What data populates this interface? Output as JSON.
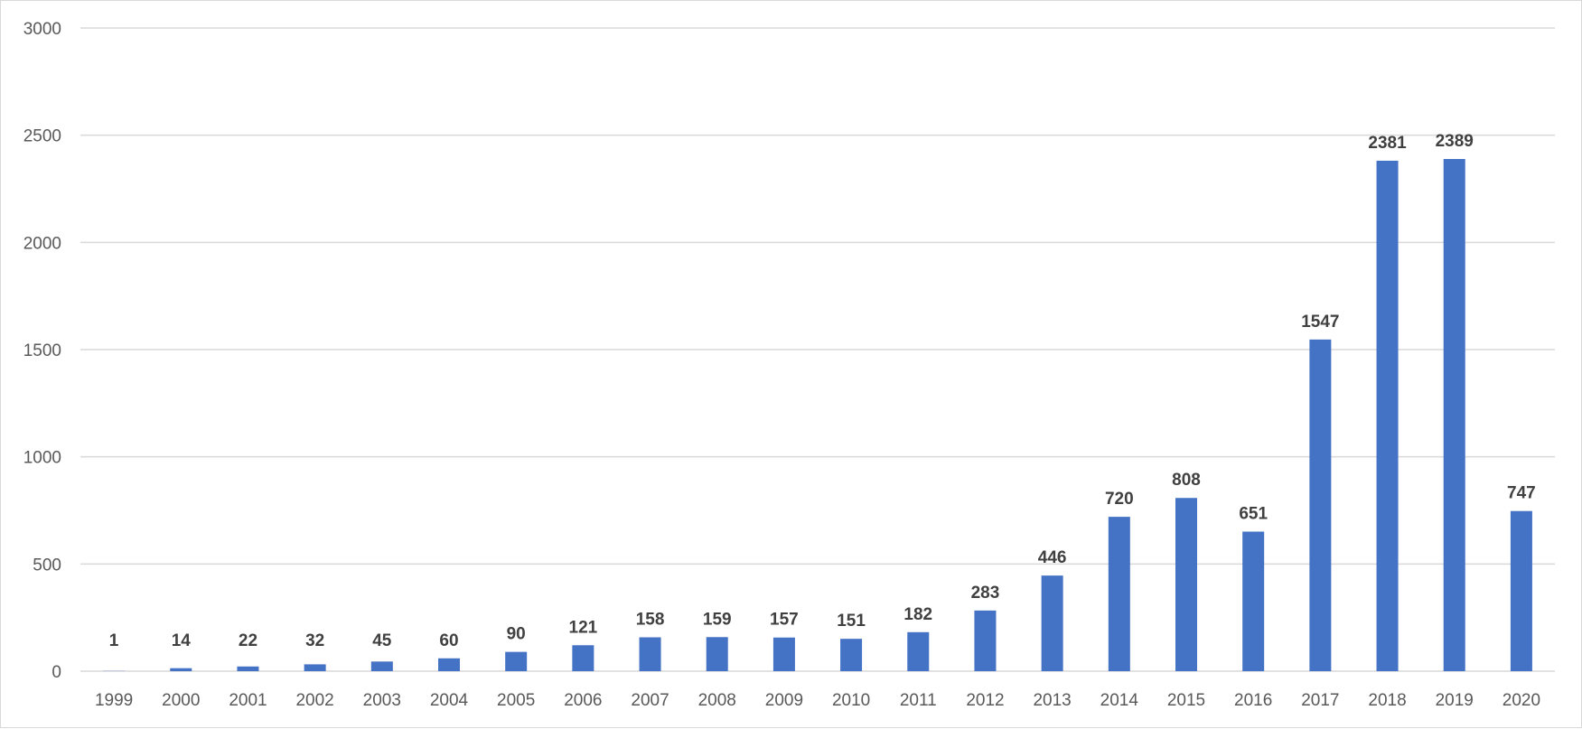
{
  "chart_data": {
    "type": "bar",
    "title": "",
    "xlabel": "",
    "ylabel": "",
    "categories": [
      "1999",
      "2000",
      "2001",
      "2002",
      "2003",
      "2004",
      "2005",
      "2006",
      "2007",
      "2008",
      "2009",
      "2010",
      "2011",
      "2012",
      "2013",
      "2014",
      "2015",
      "2016",
      "2017",
      "2018",
      "2019",
      "2020"
    ],
    "values": [
      1,
      14,
      22,
      32,
      45,
      60,
      90,
      121,
      158,
      159,
      157,
      151,
      182,
      283,
      446,
      720,
      808,
      651,
      1547,
      2381,
      2389,
      747
    ],
    "ylim": [
      0,
      3000
    ],
    "yticks": [
      0,
      500,
      1000,
      1500,
      2000,
      2500,
      3000
    ],
    "grid": true,
    "legend": "none",
    "colors": {
      "bar": "#4472c4",
      "grid": "#d9d9d9",
      "tick_text": "#595959",
      "data_label": "#404040"
    }
  }
}
